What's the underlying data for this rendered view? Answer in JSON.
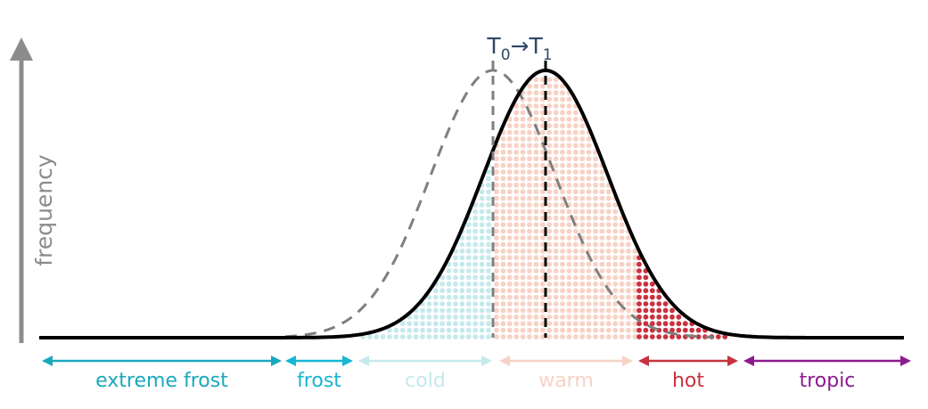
{
  "axis": {
    "ylabel": "frequency"
  },
  "shift_label": {
    "t0_base": "T",
    "t0_sub": "0",
    "arrow": "→",
    "t1_base": "T",
    "t1_sub": "1"
  },
  "regions": [
    {
      "id": "extreme-frost",
      "label": "extreme frost",
      "color": "#1aa8bd"
    },
    {
      "id": "frost",
      "label": "frost",
      "color": "#17b5d6"
    },
    {
      "id": "cold",
      "label": "cold",
      "color": "#c6e9ec"
    },
    {
      "id": "warm",
      "label": "warm",
      "color": "#f7d2c5"
    },
    {
      "id": "hot",
      "label": "hot",
      "color": "#c8323f"
    },
    {
      "id": "tropic",
      "label": "tropic",
      "color": "#8c1a8e"
    }
  ],
  "curves": {
    "baseline": {
      "style": "dashed",
      "color": "#7f7f7f"
    },
    "shifted": {
      "style": "solid",
      "color": "#000000"
    }
  },
  "dot_fill": {
    "cold": "#c6e9ec",
    "warm": "#f7d2c5",
    "hot": "#c8323f"
  },
  "axis_color": "#8c8c8c",
  "label_color": "#2f4766"
}
